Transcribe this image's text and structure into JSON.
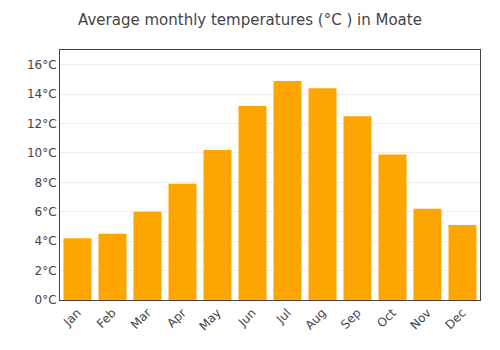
{
  "chart_data": {
    "type": "bar",
    "title": "Average monthly temperatures (°C ) in Moate",
    "categories": [
      "Jan",
      "Feb",
      "Mar",
      "Apr",
      "May",
      "Jun",
      "Jul",
      "Aug",
      "Sep",
      "Oct",
      "Nov",
      "Dec"
    ],
    "values": [
      4.2,
      4.5,
      6.0,
      7.9,
      10.2,
      13.2,
      14.9,
      14.4,
      12.5,
      9.9,
      6.2,
      5.1
    ],
    "color": "#FFA500",
    "ylim": [
      0,
      17
    ],
    "yticks": [
      {
        "value": 0,
        "label": "0°C"
      },
      {
        "value": 2,
        "label": "2°C"
      },
      {
        "value": 4,
        "label": "4°C"
      },
      {
        "value": 6,
        "label": "6°C"
      },
      {
        "value": 8,
        "label": "8°C"
      },
      {
        "value": 10,
        "label": "10°C"
      },
      {
        "value": 12,
        "label": "12°C"
      },
      {
        "value": 14,
        "label": "14°C"
      },
      {
        "value": 16,
        "label": "16°C"
      }
    ],
    "grid": true
  }
}
